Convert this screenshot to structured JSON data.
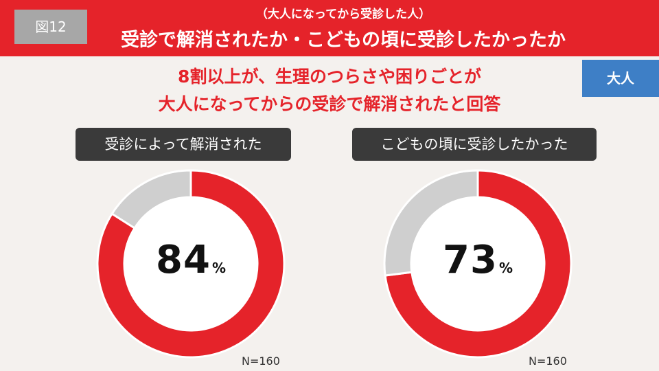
{
  "header": {
    "figure_tag": "図12",
    "subtitle": "（大人になってから受診した人）",
    "title": "受診で解消されたか・こどもの頃に受診したかったか",
    "bg_color": "#e5232a"
  },
  "headline": {
    "line1": "8割以上が、生理のつらさや困りごとが",
    "line2": "大人になってからの受診で解消されたと回答",
    "color": "#e5232a"
  },
  "audience_badge": {
    "label": "大人",
    "color": "#3e7fc6"
  },
  "chart_data": [
    {
      "type": "pie",
      "title": "受診によって解消された",
      "value": 84,
      "unit": "%",
      "n_label": "N=160",
      "colors": {
        "primary": "#e5232a",
        "rest": "#cfcfcf"
      }
    },
    {
      "type": "pie",
      "title": "こどもの頃に受診したかった",
      "value": 73,
      "unit": "%",
      "n_label": "N=160",
      "colors": {
        "primary": "#e5232a",
        "rest": "#cfcfcf"
      }
    }
  ]
}
